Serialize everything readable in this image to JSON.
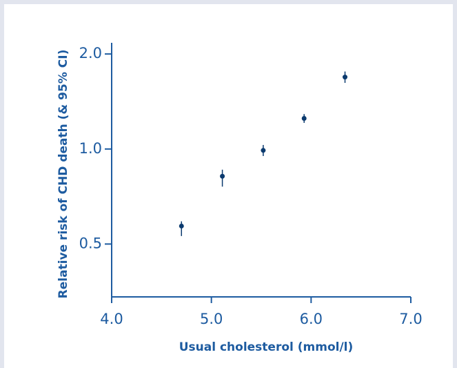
{
  "chart_data": {
    "type": "scatter",
    "xlabel": "Usual cholesterol (mmol/l)",
    "ylabel": "Relative risk of CHD death (& 95% CI)",
    "x": [
      4.7,
      5.11,
      5.52,
      5.93,
      6.34
    ],
    "values": [
      0.57,
      0.82,
      0.99,
      1.25,
      1.69
    ],
    "err_low": [
      0.53,
      0.76,
      0.95,
      1.21,
      1.62
    ],
    "err_high": [
      0.59,
      0.86,
      1.03,
      1.29,
      1.76
    ],
    "color": "#0b3a6e",
    "xlim": [
      4,
      7
    ],
    "xticks": [
      {
        "value": 4,
        "label": "4.0"
      },
      {
        "value": 5,
        "label": "5.0"
      },
      {
        "value": 6,
        "label": "6.0"
      },
      {
        "value": 7,
        "label": "7.0"
      }
    ],
    "ylim": [
      0.34,
      2.17
    ],
    "yticks": [
      {
        "value": 0.5,
        "label": "0.5"
      },
      {
        "value": 1,
        "label": "1.0"
      },
      {
        "value": 2,
        "label": "2.0"
      }
    ],
    "yscale": "log",
    "grid": false
  }
}
